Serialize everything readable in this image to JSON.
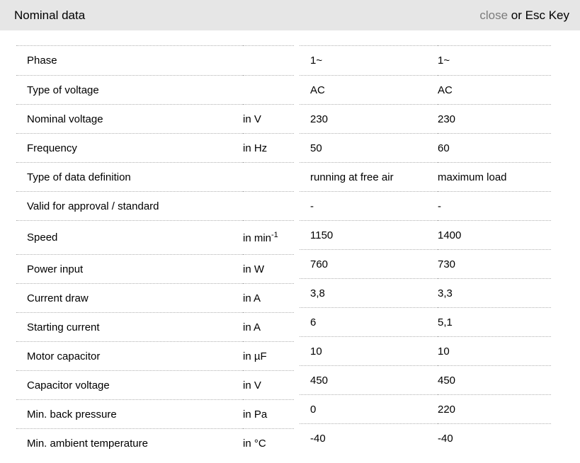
{
  "header": {
    "title": "Nominal data",
    "close_label": "close",
    "close_suffix": " or Esc Key"
  },
  "colors": {
    "header_bg": "#e6e6e6",
    "divider": "#b0b0b0",
    "close_link": "#7c7c7c",
    "text": "#000000"
  },
  "table": {
    "columns": [
      "label",
      "unit",
      "value_50hz",
      "value_60hz"
    ],
    "rows": [
      {
        "label": "Phase",
        "unit": "",
        "value1": "1~",
        "value2": "1~"
      },
      {
        "label": "Type of voltage",
        "unit": "",
        "value1": "AC",
        "value2": "AC"
      },
      {
        "label": "Nominal voltage",
        "unit": "in V",
        "value1": "230",
        "value2": "230"
      },
      {
        "label": "Frequency",
        "unit": "in Hz",
        "value1": "50",
        "value2": "60"
      },
      {
        "label": "Type of data definition",
        "unit": "",
        "value1": "running at free air",
        "value2": "maximum load"
      },
      {
        "label": "Valid for approval / standard",
        "unit": "",
        "value1": "-",
        "value2": "-"
      },
      {
        "label": "Speed",
        "unit": "in min",
        "unit_sup": "-1",
        "value1": "1150",
        "value2": "1400"
      },
      {
        "label": "Power input",
        "unit": "in W",
        "value1": "760",
        "value2": "730"
      },
      {
        "label": "Current draw",
        "unit": "in A",
        "value1": "3,8",
        "value2": "3,3"
      },
      {
        "label": "Starting current",
        "unit": "in A",
        "value1": "6",
        "value2": "5,1"
      },
      {
        "label": "Motor capacitor",
        "unit": "in µF",
        "value1": "10",
        "value2": "10"
      },
      {
        "label": "Capacitor voltage",
        "unit": "in V",
        "value1": "450",
        "value2": "450"
      },
      {
        "label": "Min. back pressure",
        "unit": "in Pa",
        "value1": "0",
        "value2": "220"
      },
      {
        "label": "Min. ambient temperature",
        "unit": "in °C",
        "value1": "-40",
        "value2": "-40"
      }
    ]
  }
}
